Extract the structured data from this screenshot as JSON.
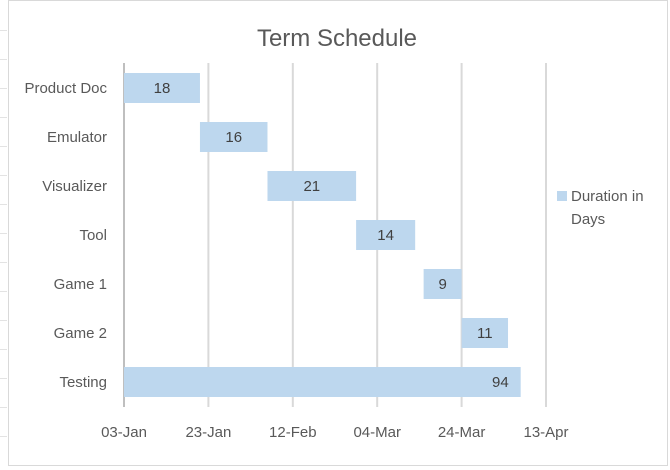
{
  "chart_data": {
    "type": "bar",
    "orientation": "horizontal",
    "stacked": true,
    "title": "Term Schedule",
    "categories": [
      "Product Doc",
      "Emulator",
      "Visualizer",
      "Tool",
      "Game 1",
      "Game 2",
      "Testing"
    ],
    "series": [
      {
        "name": "Duration in Days",
        "color": "#bdd7ee",
        "start": [
          "2015-01-03",
          "2015-01-21",
          "2015-02-06",
          "2015-02-27",
          "2015-03-15",
          "2015-03-24",
          "2015-01-03"
        ],
        "values": [
          18,
          16,
          21,
          14,
          9,
          11,
          94
        ]
      }
    ],
    "xaxis": {
      "type": "date",
      "ticks": [
        "03-Jan",
        "23-Jan",
        "12-Feb",
        "04-Mar",
        "24-Mar",
        "13-Apr"
      ],
      "range": [
        "2015-01-03",
        "2015-04-13"
      ],
      "major_unit_days": 20
    },
    "gridlines": "vertical-major",
    "legend": {
      "position": "right",
      "lines": [
        "Duration in",
        "Days"
      ]
    },
    "data_labels": true,
    "colors": {
      "bar": "#bdd7ee",
      "grid": "#d9d9d9",
      "text": "#595959"
    }
  }
}
